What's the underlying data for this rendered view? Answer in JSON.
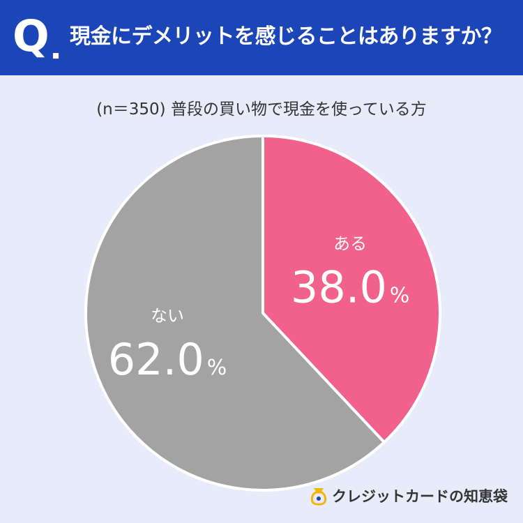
{
  "header": {
    "q_mark": "Q",
    "question": "現金にデメリットを感じることはありますか？"
  },
  "subtitle": "(n＝350) 普段の買い物で現金を使っている方",
  "brand": {
    "name": "クレジットカードの知恵袋",
    "logo_icon": "bag-logo-icon"
  },
  "colors": {
    "header_bg": "#1c46b8",
    "page_bg": "#e8ecfa",
    "slice_yes": "#f2608c",
    "slice_no": "#a3a3a3"
  },
  "chart_data": {
    "type": "pie",
    "slices": [
      {
        "label": "ある",
        "value": 38.0,
        "display": "38.0",
        "unit": "%",
        "color": "#f2608c"
      },
      {
        "label": "ない",
        "value": 62.0,
        "display": "62.0",
        "unit": "%",
        "color": "#a3a3a3"
      }
    ]
  }
}
